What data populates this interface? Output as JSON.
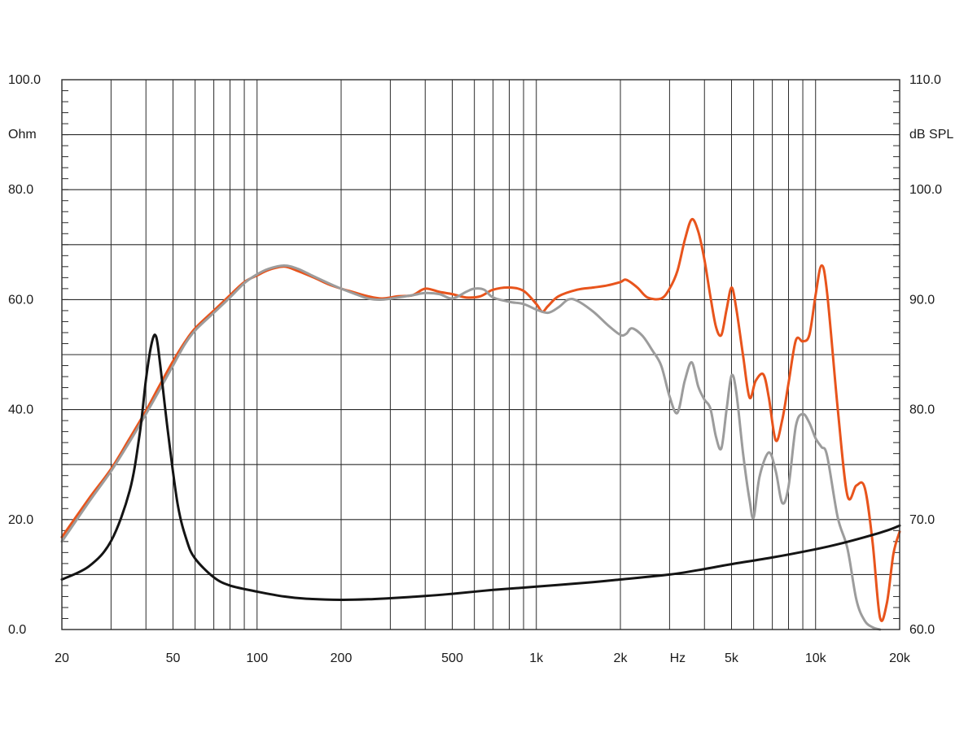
{
  "chart_data": {
    "type": "line",
    "title": "",
    "xscale": "log",
    "xlim": [
      20,
      20000
    ],
    "x_ticks": [
      {
        "value": 20,
        "label": "20"
      },
      {
        "value": 50,
        "label": "50"
      },
      {
        "value": 100,
        "label": "100"
      },
      {
        "value": 200,
        "label": "200"
      },
      {
        "value": 500,
        "label": "500"
      },
      {
        "value": 1000,
        "label": "1k"
      },
      {
        "value": 2000,
        "label": "2k"
      },
      {
        "value": 5000,
        "label": "5k"
      },
      {
        "value": 10000,
        "label": "10k"
      },
      {
        "value": 20000,
        "label": "20k"
      }
    ],
    "xlabel": "Hz",
    "xlabel_at": 3000,
    "y_left": {
      "label": "Ohm",
      "ylim": [
        0,
        100
      ],
      "ticks": [
        {
          "value": 0,
          "label": "0.0"
        },
        {
          "value": 20,
          "label": "20.0"
        },
        {
          "value": 40,
          "label": "40.0"
        },
        {
          "value": 60,
          "label": "60.0"
        },
        {
          "value": 80,
          "label": "80.0"
        },
        {
          "value": 100,
          "label": "100.0"
        }
      ]
    },
    "y_right": {
      "label": "dB SPL",
      "ylim": [
        60,
        110
      ],
      "ticks": [
        {
          "value": 60,
          "label": "60.0"
        },
        {
          "value": 70,
          "label": "70.0"
        },
        {
          "value": 80,
          "label": "80.0"
        },
        {
          "value": 90,
          "label": "90.0"
        },
        {
          "value": 100,
          "label": "100.0"
        },
        {
          "value": 110,
          "label": "110.0"
        }
      ]
    },
    "grid": true,
    "series": [
      {
        "axis": "right",
        "color": "#e8541c",
        "points": [
          [
            20,
            68.4
          ],
          [
            25,
            71.9
          ],
          [
            30,
            74.6
          ],
          [
            35,
            77.4
          ],
          [
            40,
            79.9
          ],
          [
            45,
            82.3
          ],
          [
            50,
            84.4
          ],
          [
            55,
            86.1
          ],
          [
            60,
            87.4
          ],
          [
            70,
            89.0
          ],
          [
            80,
            90.4
          ],
          [
            90,
            91.6
          ],
          [
            100,
            92.2
          ],
          [
            110,
            92.7
          ],
          [
            125,
            93.0
          ],
          [
            140,
            92.6
          ],
          [
            160,
            92.0
          ],
          [
            180,
            91.4
          ],
          [
            200,
            91.0
          ],
          [
            220,
            90.7
          ],
          [
            250,
            90.3
          ],
          [
            280,
            90.1
          ],
          [
            320,
            90.3
          ],
          [
            360,
            90.4
          ],
          [
            400,
            91.0
          ],
          [
            450,
            90.7
          ],
          [
            500,
            90.5
          ],
          [
            560,
            90.2
          ],
          [
            630,
            90.3
          ],
          [
            700,
            90.9
          ],
          [
            800,
            91.1
          ],
          [
            900,
            90.8
          ],
          [
            1000,
            89.6
          ],
          [
            1050,
            88.9
          ],
          [
            1100,
            89.4
          ],
          [
            1200,
            90.3
          ],
          [
            1400,
            90.9
          ],
          [
            1600,
            91.1
          ],
          [
            1800,
            91.3
          ],
          [
            2000,
            91.6
          ],
          [
            2100,
            91.8
          ],
          [
            2300,
            91.1
          ],
          [
            2500,
            90.2
          ],
          [
            2800,
            90.1
          ],
          [
            3000,
            91.0
          ],
          [
            3200,
            92.6
          ],
          [
            3400,
            95.4
          ],
          [
            3600,
            97.3
          ],
          [
            3800,
            96.2
          ],
          [
            4000,
            93.6
          ],
          [
            4200,
            90.3
          ],
          [
            4400,
            87.5
          ],
          [
            4600,
            86.8
          ],
          [
            4800,
            89.1
          ],
          [
            5000,
            91.1
          ],
          [
            5200,
            89.2
          ],
          [
            5500,
            84.9
          ],
          [
            5800,
            81.1
          ],
          [
            6100,
            82.6
          ],
          [
            6500,
            83.2
          ],
          [
            6800,
            81.1
          ],
          [
            7200,
            77.2
          ],
          [
            7600,
            79.1
          ],
          [
            8000,
            82.4
          ],
          [
            8500,
            86.3
          ],
          [
            9000,
            86.2
          ],
          [
            9500,
            86.8
          ],
          [
            10000,
            90.4
          ],
          [
            10500,
            93.1
          ],
          [
            11000,
            90.6
          ],
          [
            12000,
            80.1
          ],
          [
            13000,
            72.2
          ],
          [
            14000,
            73.1
          ],
          [
            15000,
            72.9
          ],
          [
            16000,
            67.9
          ],
          [
            17000,
            61.1
          ],
          [
            18000,
            62.4
          ],
          [
            19000,
            66.9
          ],
          [
            20000,
            68.9
          ]
        ]
      },
      {
        "axis": "right",
        "color": "#9c9c9c",
        "points": [
          [
            20,
            68.0
          ],
          [
            25,
            71.6
          ],
          [
            30,
            74.4
          ],
          [
            35,
            77.1
          ],
          [
            40,
            79.6
          ],
          [
            45,
            81.9
          ],
          [
            50,
            84.0
          ],
          [
            55,
            85.9
          ],
          [
            60,
            87.2
          ],
          [
            70,
            88.8
          ],
          [
            80,
            90.2
          ],
          [
            90,
            91.5
          ],
          [
            100,
            92.3
          ],
          [
            110,
            92.8
          ],
          [
            125,
            93.1
          ],
          [
            140,
            92.8
          ],
          [
            160,
            92.1
          ],
          [
            180,
            91.5
          ],
          [
            200,
            91.0
          ],
          [
            220,
            90.6
          ],
          [
            250,
            90.1
          ],
          [
            280,
            90.0
          ],
          [
            320,
            90.2
          ],
          [
            360,
            90.4
          ],
          [
            400,
            90.6
          ],
          [
            450,
            90.5
          ],
          [
            500,
            90.1
          ],
          [
            560,
            90.7
          ],
          [
            600,
            91.0
          ],
          [
            650,
            90.9
          ],
          [
            700,
            90.2
          ],
          [
            800,
            89.8
          ],
          [
            900,
            89.6
          ],
          [
            1000,
            89.1
          ],
          [
            1100,
            88.8
          ],
          [
            1200,
            89.3
          ],
          [
            1300,
            90.0
          ],
          [
            1400,
            89.9
          ],
          [
            1600,
            88.9
          ],
          [
            1800,
            87.7
          ],
          [
            2000,
            86.8
          ],
          [
            2100,
            86.9
          ],
          [
            2200,
            87.4
          ],
          [
            2400,
            86.7
          ],
          [
            2600,
            85.4
          ],
          [
            2800,
            84.0
          ],
          [
            3000,
            81.2
          ],
          [
            3200,
            79.7
          ],
          [
            3400,
            82.6
          ],
          [
            3600,
            84.3
          ],
          [
            3800,
            82.1
          ],
          [
            4000,
            80.9
          ],
          [
            4200,
            80.1
          ],
          [
            4400,
            77.5
          ],
          [
            4600,
            76.5
          ],
          [
            4800,
            80.0
          ],
          [
            5000,
            83.1
          ],
          [
            5200,
            81.6
          ],
          [
            5500,
            76.0
          ],
          [
            5800,
            71.8
          ],
          [
            6000,
            70.2
          ],
          [
            6300,
            73.9
          ],
          [
            6800,
            76.1
          ],
          [
            7200,
            74.4
          ],
          [
            7600,
            71.5
          ],
          [
            8000,
            73.0
          ],
          [
            8500,
            78.5
          ],
          [
            9000,
            79.6
          ],
          [
            9500,
            78.8
          ],
          [
            10000,
            77.4
          ],
          [
            10500,
            76.6
          ],
          [
            11000,
            75.8
          ],
          [
            12000,
            70.2
          ],
          [
            13000,
            67.4
          ],
          [
            14000,
            62.7
          ],
          [
            15000,
            60.8
          ],
          [
            16000,
            60.2
          ],
          [
            17000,
            60.0
          ]
        ]
      },
      {
        "axis": "left",
        "color": "#141414",
        "points": [
          [
            20,
            9.1
          ],
          [
            25,
            11.5
          ],
          [
            30,
            16.1
          ],
          [
            35,
            25.3
          ],
          [
            38,
            35.6
          ],
          [
            40,
            45.5
          ],
          [
            42,
            52.2
          ],
          [
            43.5,
            53.3
          ],
          [
            45,
            48.1
          ],
          [
            48,
            35.8
          ],
          [
            52,
            22.7
          ],
          [
            56,
            16.2
          ],
          [
            60,
            12.9
          ],
          [
            70,
            9.5
          ],
          [
            80,
            8.0
          ],
          [
            100,
            6.9
          ],
          [
            125,
            6.0
          ],
          [
            150,
            5.6
          ],
          [
            200,
            5.4
          ],
          [
            250,
            5.5
          ],
          [
            300,
            5.7
          ],
          [
            400,
            6.1
          ],
          [
            500,
            6.5
          ],
          [
            700,
            7.2
          ],
          [
            1000,
            7.8
          ],
          [
            1500,
            8.5
          ],
          [
            2000,
            9.1
          ],
          [
            3000,
            10.0
          ],
          [
            4000,
            11.0
          ],
          [
            5000,
            11.9
          ],
          [
            7000,
            13.1
          ],
          [
            10000,
            14.6
          ],
          [
            12000,
            15.5
          ],
          [
            15000,
            16.8
          ],
          [
            18000,
            18.0
          ],
          [
            20000,
            18.9
          ]
        ]
      }
    ]
  }
}
